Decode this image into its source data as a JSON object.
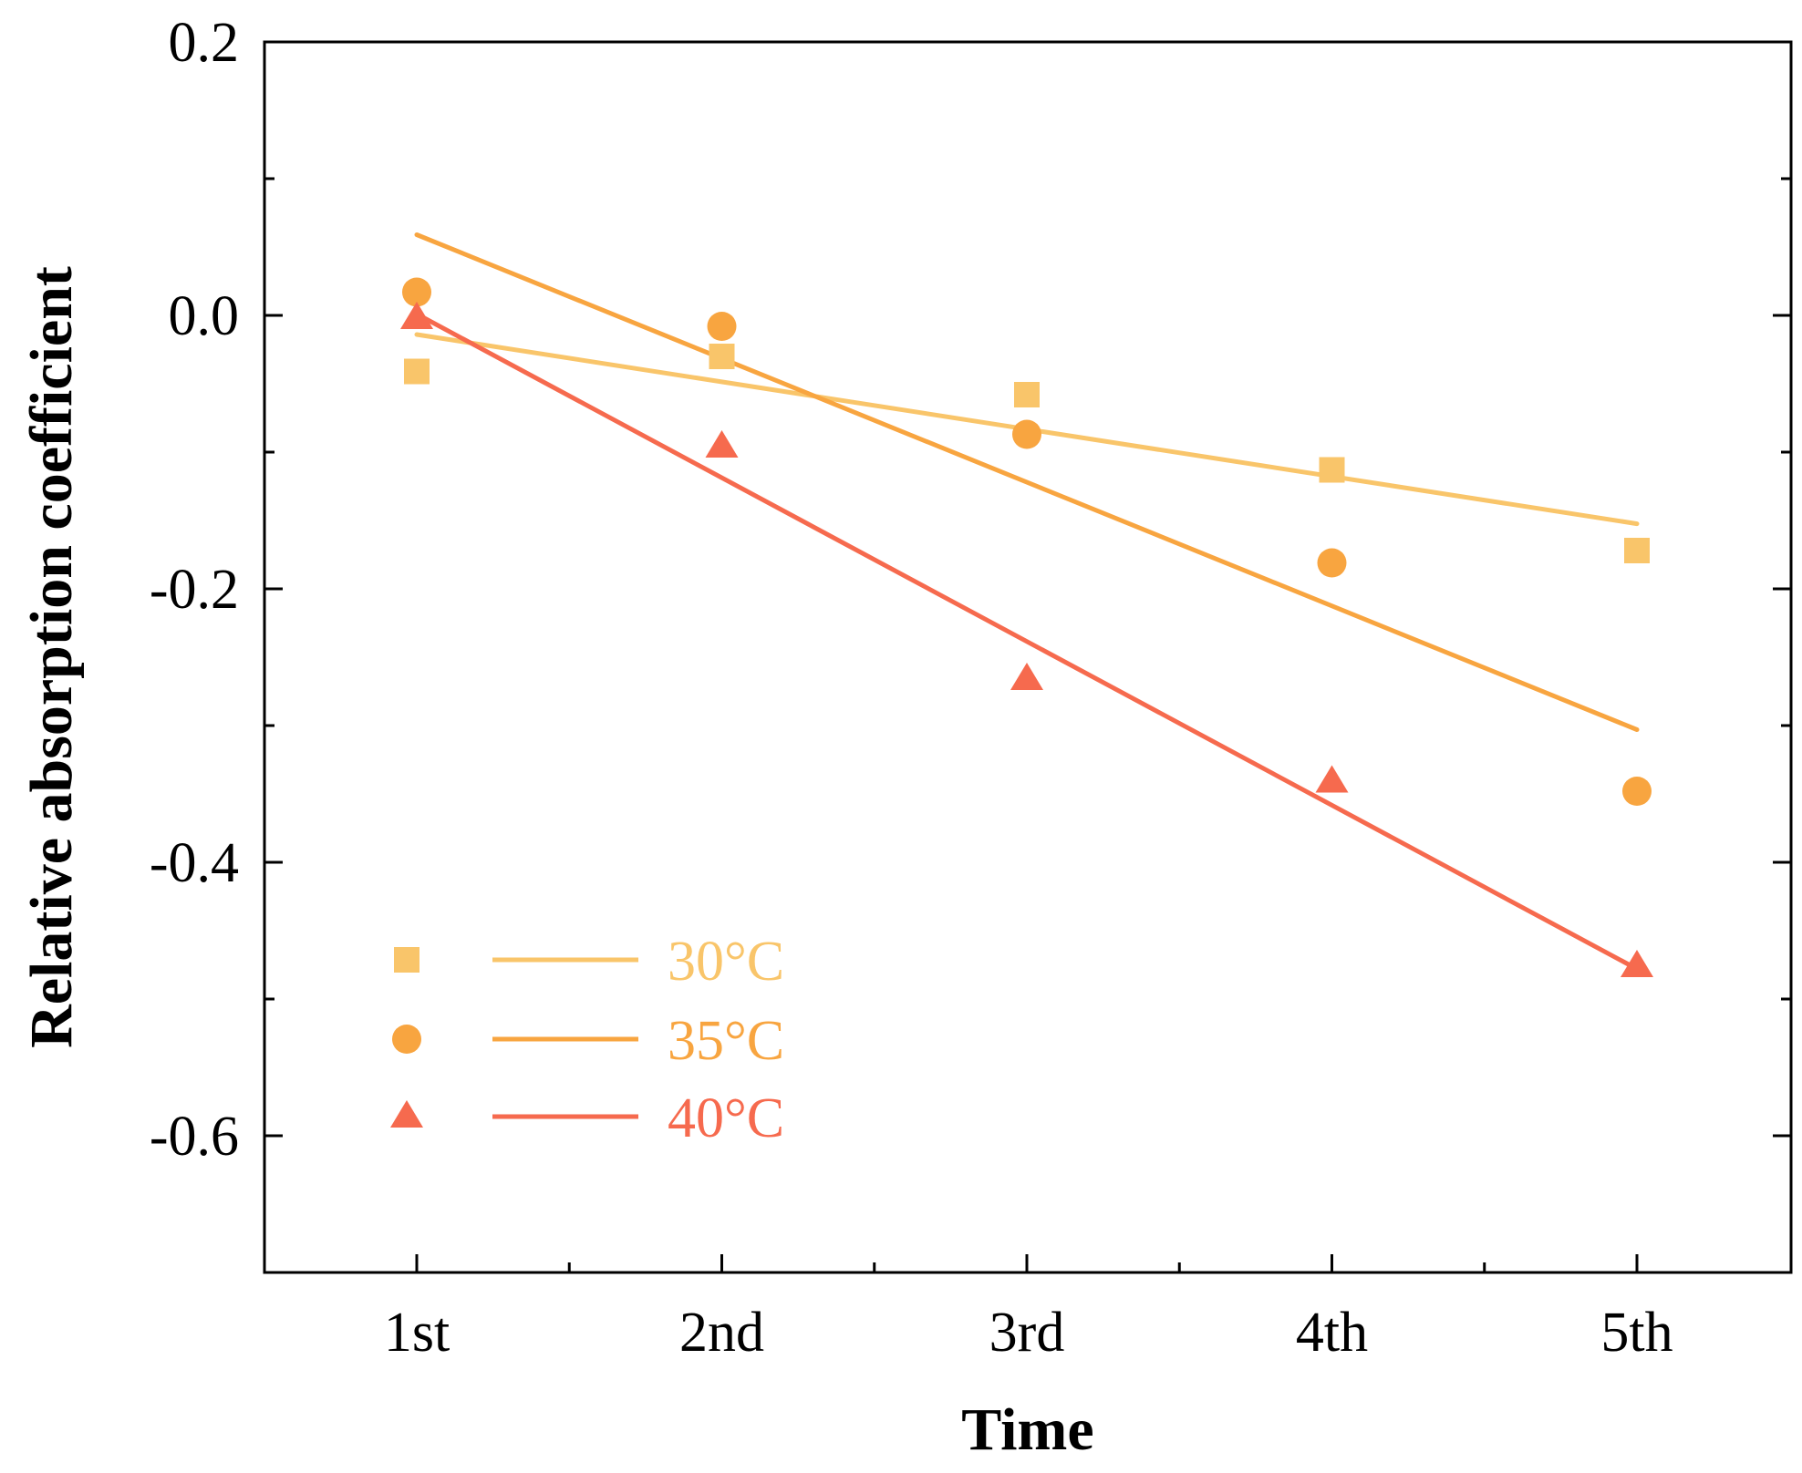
{
  "chart_data": {
    "type": "scatter",
    "title": "",
    "xlabel": "Time",
    "ylabel": "Relative absorption coefficient",
    "categories": [
      "1st",
      "2nd",
      "3rd",
      "4th",
      "5th"
    ],
    "ylim": [
      -0.7,
      0.2
    ],
    "yticks": [
      0.2,
      0.0,
      -0.2,
      -0.4,
      -0.6
    ],
    "ytick_labels": [
      "0.2",
      "0.0",
      "-0.2",
      "-0.4",
      "-0.6"
    ],
    "grid": false,
    "legend_position": "bottom-left",
    "series": [
      {
        "name": "30°C",
        "marker": "square",
        "color": "#F9C56A",
        "values": [
          -0.041,
          -0.03,
          -0.058,
          -0.113,
          -0.172
        ],
        "fit": [
          -0.014,
          -0.1524
        ]
      },
      {
        "name": "35°C",
        "marker": "circle",
        "color": "#F8A540",
        "values": [
          0.017,
          -0.008,
          -0.087,
          -0.181,
          -0.348
        ],
        "fit": [
          0.059,
          -0.303
        ]
      },
      {
        "name": "40°C",
        "marker": "triangle",
        "color": "#F66A4E",
        "values": [
          -0.002,
          -0.096,
          -0.266,
          -0.341,
          -0.476
        ],
        "fit": [
          0.001,
          -0.478
        ]
      }
    ]
  }
}
